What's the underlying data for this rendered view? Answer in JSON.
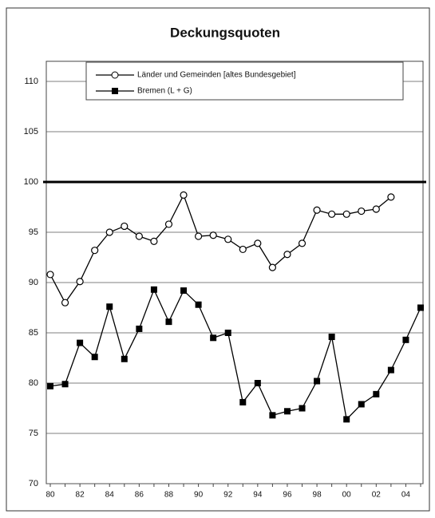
{
  "chart_data": {
    "type": "line",
    "title": "Deckungsquoten",
    "categories": [
      "80",
      null,
      "82",
      null,
      "84",
      null,
      "86",
      null,
      "88",
      null,
      "90",
      null,
      "92",
      null,
      "94",
      null,
      "96",
      null,
      "98",
      null,
      "00",
      null,
      "02",
      null,
      "04",
      null
    ],
    "series": [
      {
        "name": "Länder und Gemeinden [altes Bundesgebiet]",
        "color": "#000000",
        "marker": "open-circle",
        "values": [
          90.8,
          88.0,
          90.1,
          93.2,
          95.0,
          95.6,
          94.6,
          94.1,
          95.8,
          98.7,
          94.6,
          94.7,
          94.3,
          93.3,
          93.9,
          91.5,
          92.8,
          93.9,
          97.2,
          96.8,
          96.8,
          97.1,
          97.3,
          98.5,
          null,
          null
        ]
      },
      {
        "name": "Bremen (L + G)",
        "color": "#000000",
        "marker": "filled-square",
        "values": [
          79.7,
          79.9,
          84.0,
          82.6,
          87.6,
          82.4,
          85.4,
          89.3,
          86.1,
          89.2,
          87.8,
          84.5,
          85.0,
          78.1,
          80.0,
          76.8,
          77.2,
          77.5,
          80.2,
          84.6,
          76.4,
          77.9,
          78.9,
          81.3,
          84.3,
          87.5
        ]
      }
    ],
    "ylim": [
      70,
      112
    ],
    "yticks": [
      70,
      75,
      80,
      85,
      90,
      95,
      100,
      105,
      110
    ],
    "reference_line": 100,
    "grid": true
  }
}
